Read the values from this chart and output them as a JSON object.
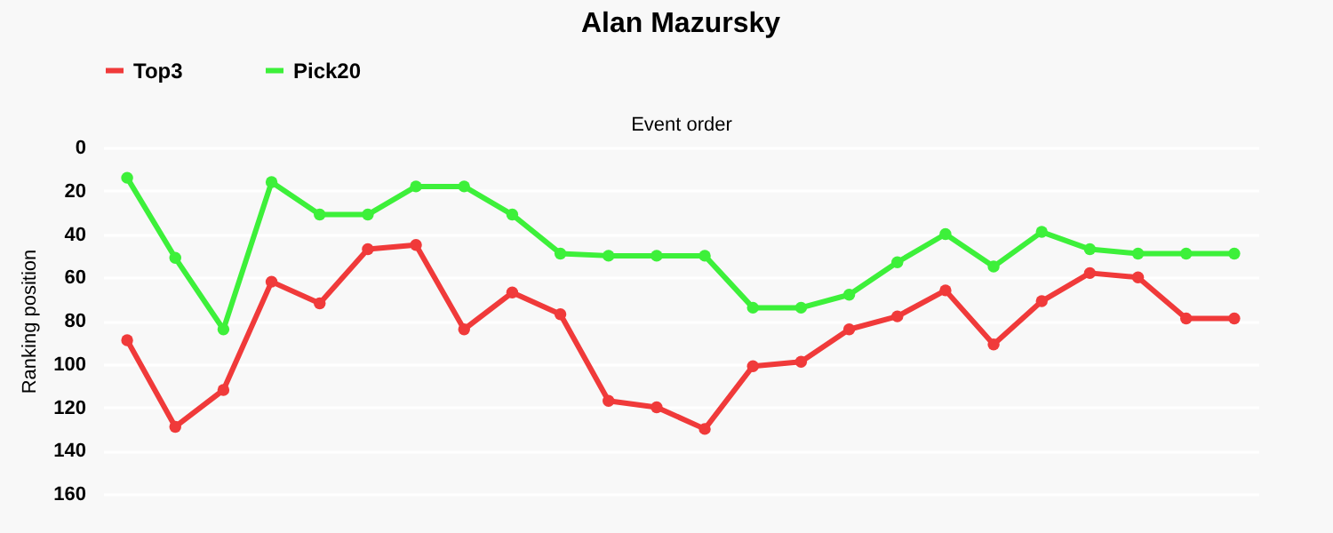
{
  "chart_data": {
    "type": "line",
    "title": "Alan Mazursky",
    "xlabel": "Event order",
    "ylabel": "Ranking position",
    "categories": [
      null,
      null,
      null,
      null,
      null,
      null,
      null,
      null,
      null,
      null,
      null,
      null,
      null,
      null,
      null,
      null,
      null,
      null,
      null,
      null,
      null,
      null,
      null,
      null
    ],
    "series": [
      {
        "name": "Top3",
        "color": "#f03a3a",
        "values": [
          89,
          129,
          112,
          62,
          72,
          47,
          45,
          84,
          67,
          77,
          117,
          120,
          130,
          101,
          99,
          84,
          78,
          66,
          91,
          71,
          58,
          60,
          79,
          79
        ]
      },
      {
        "name": "Pick20",
        "color": "#3df03a",
        "values": [
          14,
          51,
          84,
          16,
          31,
          31,
          18,
          18,
          31,
          49,
          50,
          50,
          50,
          74,
          74,
          68,
          53,
          40,
          55,
          39,
          47,
          49,
          49,
          49
        ]
      }
    ],
    "ylim": [
      160,
      0
    ],
    "yticks": [
      0,
      20,
      40,
      60,
      80,
      100,
      120,
      140,
      160
    ],
    "grid": "y",
    "legend": "top",
    "marker": "circle",
    "line_style": "solid"
  }
}
